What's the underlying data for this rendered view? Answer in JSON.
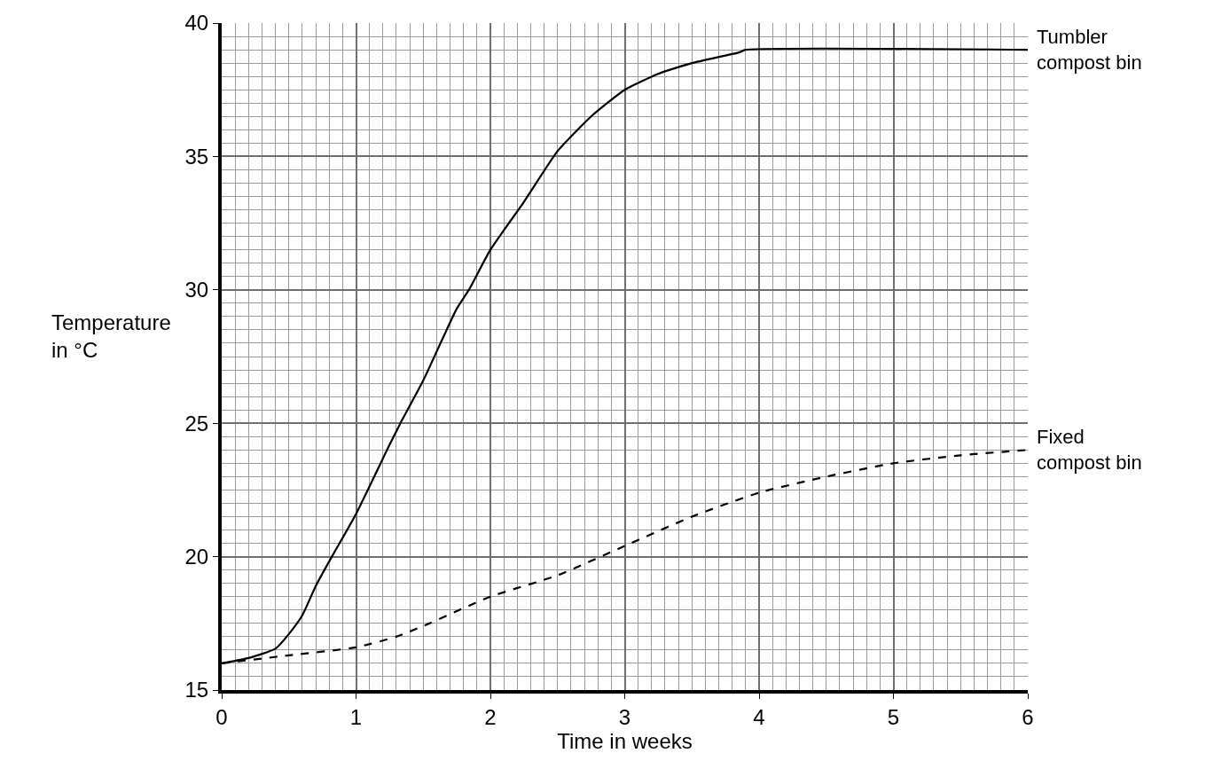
{
  "chart_data": {
    "type": "line",
    "xlabel": "Time in weeks",
    "ylabel": "Temperature in °C",
    "xlim": [
      0,
      6
    ],
    "xticks": [
      0,
      1,
      2,
      3,
      4,
      5,
      6
    ],
    "ylim": [
      15,
      40
    ],
    "yticks": [
      15,
      20,
      25,
      30,
      35,
      40
    ],
    "grid": true,
    "legend": false,
    "marker": "none",
    "series": [
      {
        "name": "Tumbler compost bin",
        "color": "#000000",
        "line_style": "solid",
        "x": [
          0,
          0.2,
          0.4,
          0.5,
          0.6,
          0.7,
          0.82,
          1,
          1.25,
          1.33,
          1.5,
          1.75,
          1.84,
          2,
          2.25,
          2.5,
          2.75,
          3,
          3.25,
          3.5,
          3.85,
          3.9,
          6
        ],
        "values": [
          16,
          16.2,
          16.55,
          17.1,
          17.8,
          18.9,
          20,
          21.6,
          24.2,
          25,
          26.6,
          29.3,
          30,
          31.5,
          33.3,
          35.2,
          36.5,
          37.5,
          38.1,
          38.5,
          38.9,
          39,
          39
        ]
      },
      {
        "name": "Fixed compost bin",
        "color": "#000000",
        "line_style": "dashed",
        "x": [
          0,
          0.5,
          1,
          1.3,
          1.5,
          2,
          2.5,
          3,
          3.5,
          4,
          4.5,
          5,
          5.5,
          6
        ],
        "values": [
          16,
          16.3,
          16.6,
          17,
          17.4,
          18.5,
          19.3,
          20.4,
          21.5,
          22.4,
          23,
          23.5,
          23.8,
          24
        ]
      }
    ]
  }
}
